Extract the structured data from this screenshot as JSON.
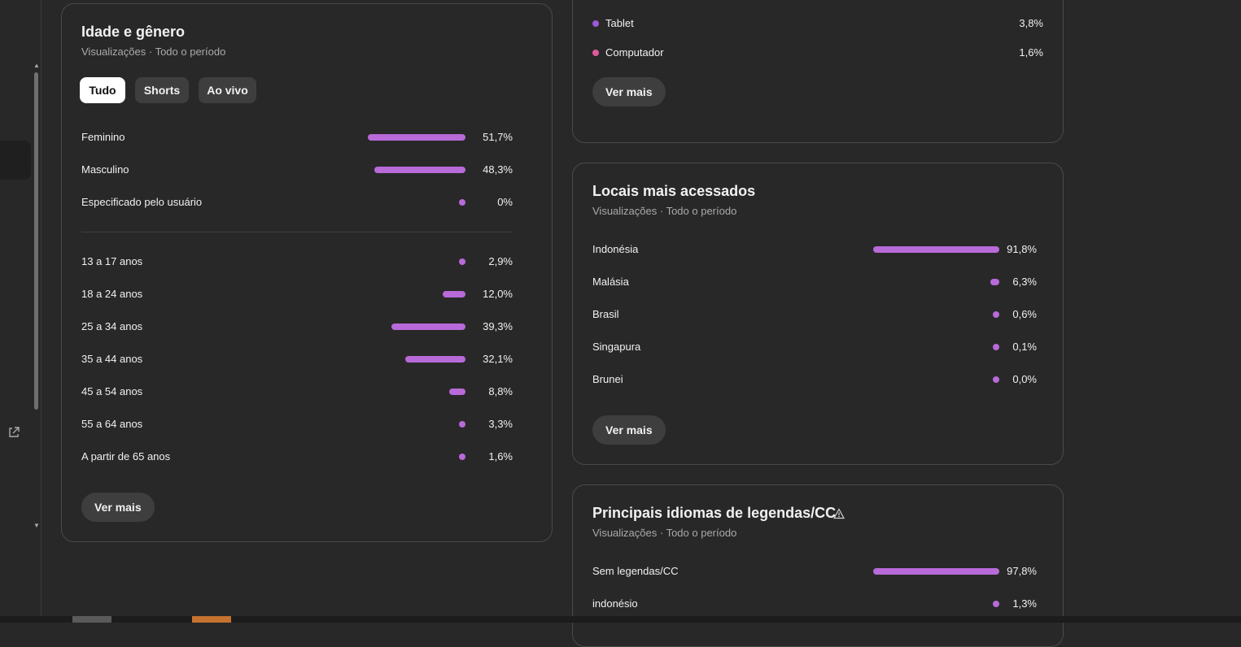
{
  "age_gender": {
    "title": "Idade e gênero",
    "subtitle": "Visualizações · Todo o período",
    "tabs": [
      {
        "label": "Tudo",
        "active": true
      },
      {
        "label": "Shorts",
        "active": false
      },
      {
        "label": "Ao vivo",
        "active": false
      }
    ],
    "gender": [
      {
        "label": "Feminino",
        "value": 51.7,
        "display": "51,7%"
      },
      {
        "label": "Masculino",
        "value": 48.3,
        "display": "48,3%"
      },
      {
        "label": "Especificado pelo usuário",
        "value": 0,
        "display": "0%"
      }
    ],
    "ages": [
      {
        "label": "13 a 17 anos",
        "value": 2.9,
        "display": "2,9%"
      },
      {
        "label": "18 a 24 anos",
        "value": 12.0,
        "display": "12,0%"
      },
      {
        "label": "25 a 34 anos",
        "value": 39.3,
        "display": "39,3%"
      },
      {
        "label": "35 a 44 anos",
        "value": 32.1,
        "display": "32,1%"
      },
      {
        "label": "45 a 54 anos",
        "value": 8.8,
        "display": "8,8%"
      },
      {
        "label": "55 a 64 anos",
        "value": 3.3,
        "display": "3,3%"
      },
      {
        "label": "A partir de 65 anos",
        "value": 1.6,
        "display": "1,6%"
      }
    ],
    "more_label": "Ver mais"
  },
  "devices": {
    "items": [
      {
        "label": "Tablet",
        "display": "3,8%",
        "color": "#9c5ad6"
      },
      {
        "label": "Computador",
        "display": "1,6%",
        "color": "#e05a9c"
      }
    ],
    "more_label": "Ver mais"
  },
  "locations": {
    "title": "Locais mais acessados",
    "subtitle": "Visualizações · Todo o período",
    "items": [
      {
        "label": "Indonésia",
        "value": 91.8,
        "display": "91,8%"
      },
      {
        "label": "Malásia",
        "value": 6.3,
        "display": "6,3%"
      },
      {
        "label": "Brasil",
        "value": 0.6,
        "display": "0,6%"
      },
      {
        "label": "Singapura",
        "value": 0.1,
        "display": "0,1%"
      },
      {
        "label": "Brunei",
        "value": 0.0,
        "display": "0,0%"
      }
    ],
    "more_label": "Ver mais"
  },
  "subtitles": {
    "title": "Principais idiomas de legendas/CC",
    "subtitle": "Visualizações · Todo o período",
    "items": [
      {
        "label": "Sem legendas/CC",
        "value": 97.8,
        "display": "97,8%"
      },
      {
        "label": "indonésio",
        "value": 1.3,
        "display": "1,3%"
      }
    ]
  },
  "colors": {
    "bar": "#b86ad9",
    "background": "#282828",
    "card_border": "#4a4a4a"
  }
}
